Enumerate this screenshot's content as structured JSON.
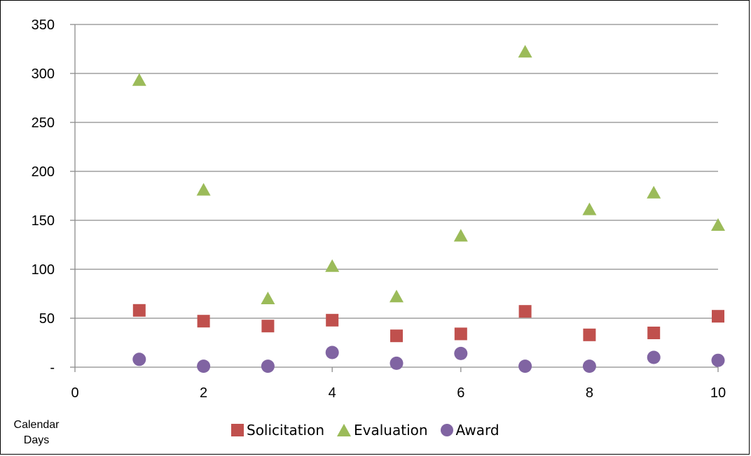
{
  "chart_data": {
    "type": "scatter",
    "x": [
      1,
      2,
      3,
      4,
      5,
      6,
      7,
      8,
      9,
      10
    ],
    "xlim": [
      0,
      10
    ],
    "ylim": [
      0,
      350
    ],
    "xticks": [
      0,
      2,
      4,
      6,
      8,
      10
    ],
    "yticks": [
      0,
      50,
      100,
      150,
      200,
      250,
      300,
      350
    ],
    "ytick_labels": [
      "-",
      "50",
      "100",
      "150",
      "200",
      "250",
      "300",
      "350"
    ],
    "ylabel": "Calendar Days",
    "grid": "horizontal",
    "legend_position": "bottom",
    "series": [
      {
        "name": "Solicitation",
        "marker": "square",
        "color": "#c0504d",
        "values": [
          58,
          47,
          42,
          48,
          32,
          34,
          57,
          33,
          35,
          52
        ]
      },
      {
        "name": "Evaluation",
        "marker": "triangle",
        "color": "#9bbb59",
        "values": [
          293,
          181,
          70,
          103,
          72,
          134,
          322,
          161,
          178,
          145
        ]
      },
      {
        "name": "Award",
        "marker": "circle",
        "color": "#8064a2",
        "values": [
          8,
          1,
          1,
          15,
          4,
          14,
          1,
          1,
          10,
          7
        ]
      }
    ]
  }
}
